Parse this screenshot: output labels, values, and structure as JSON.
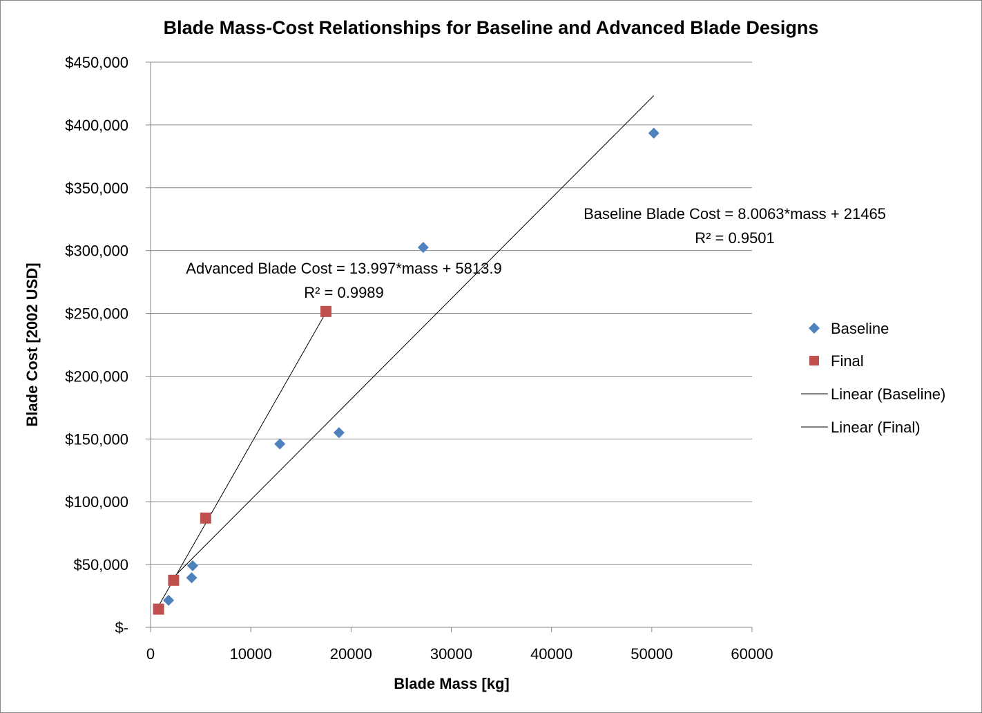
{
  "chart_data": {
    "type": "scatter",
    "title": "Blade Mass-Cost Relationships for Baseline and Advanced Blade Designs",
    "xlabel": "Blade Mass [kg]",
    "ylabel": "Blade Cost [2002 USD]",
    "xlim": [
      0,
      60000
    ],
    "ylim": [
      0,
      450000
    ],
    "x_ticks": [
      "0",
      "10000",
      "20000",
      "30000",
      "40000",
      "50000",
      "60000"
    ],
    "y_ticks": [
      "$-",
      "$50,000",
      "$100,000",
      "$150,000",
      "$200,000",
      "$250,000",
      "$300,000",
      "$350,000",
      "$400,000",
      "$450,000"
    ],
    "grid": "horizontal",
    "legend_position": "right",
    "series": [
      {
        "name": "Baseline",
        "marker": "diamond",
        "color": "#4f81bd",
        "points": [
          {
            "x": 1800,
            "y": 21500
          },
          {
            "x": 4100,
            "y": 39500
          },
          {
            "x": 4200,
            "y": 49000
          },
          {
            "x": 12900,
            "y": 146000
          },
          {
            "x": 18800,
            "y": 155000
          },
          {
            "x": 27200,
            "y": 302500
          },
          {
            "x": 50200,
            "y": 393500
          }
        ]
      },
      {
        "name": "Final",
        "marker": "square",
        "color": "#c0504d",
        "points": [
          {
            "x": 800,
            "y": 14500
          },
          {
            "x": 2300,
            "y": 37500
          },
          {
            "x": 5500,
            "y": 87000
          },
          {
            "x": 17500,
            "y": 251500
          }
        ]
      }
    ],
    "trendlines": [
      {
        "name": "Linear (Baseline)",
        "slope": 8.0063,
        "intercept": 21465,
        "x_range": [
          1800,
          50200
        ],
        "color": "#000000"
      },
      {
        "name": "Linear (Final)",
        "slope": 13.997,
        "intercept": 5813.9,
        "x_range": [
          800,
          17500
        ],
        "color": "#000000"
      }
    ],
    "annotations": [
      {
        "line1": "Baseline Blade Cost = 8.0063*mass + 21465",
        "line2": "R² = 0.9501"
      },
      {
        "line1": "Advanced Blade Cost = 13.997*mass + 5813.9",
        "line2": "R² = 0.9989"
      }
    ]
  }
}
